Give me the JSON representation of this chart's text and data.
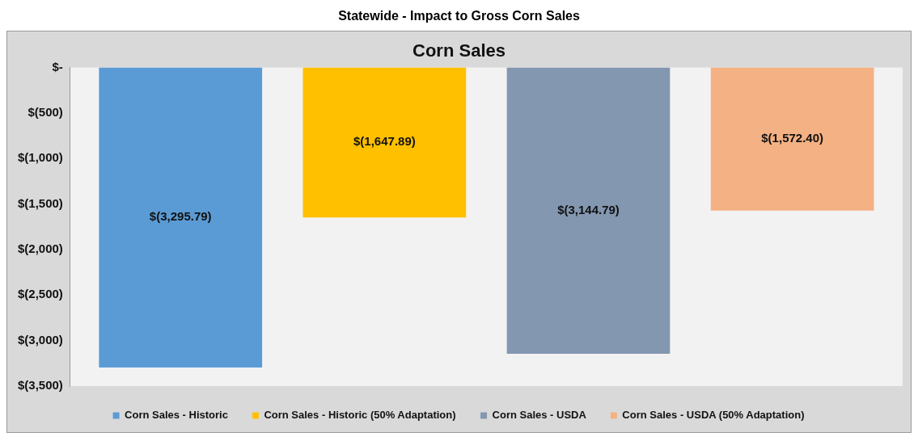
{
  "chart_data": {
    "type": "bar",
    "title": "Statewide - Impact to Gross Corn Sales",
    "subtitle": "Corn Sales",
    "categories": [
      null
    ],
    "series": [
      {
        "name": "Corn Sales - Historic",
        "color": "#5b9bd5",
        "values": [
          -3295.79
        ],
        "value_labels": [
          "$(3,295.79)"
        ]
      },
      {
        "name": "Corn Sales - Historic (50% Adaptation)",
        "color": "#ffc000",
        "values": [
          -1647.89
        ],
        "value_labels": [
          "$(1,647.89)"
        ]
      },
      {
        "name": "Corn Sales - USDA",
        "color": "#8497b0",
        "values": [
          -3144.79
        ],
        "value_labels": [
          "$(3,144.79)"
        ]
      },
      {
        "name": "Corn Sales - USDA (50% Adaptation)",
        "color": "#f4b183",
        "values": [
          -1572.4
        ],
        "value_labels": [
          "$(1,572.40)"
        ]
      }
    ],
    "ylim": [
      -3500,
      0
    ],
    "yticks": [
      {
        "value": 0,
        "label": "$-"
      },
      {
        "value": -500,
        "label": "$(500)"
      },
      {
        "value": -1000,
        "label": "$(1,000)"
      },
      {
        "value": -1500,
        "label": "$(1,500)"
      },
      {
        "value": -2000,
        "label": "$(2,000)"
      },
      {
        "value": -2500,
        "label": "$(2,500)"
      },
      {
        "value": -3000,
        "label": "$(3,000)"
      },
      {
        "value": -3500,
        "label": "$(3,500)"
      }
    ],
    "grid": false,
    "legend": "bottom"
  }
}
